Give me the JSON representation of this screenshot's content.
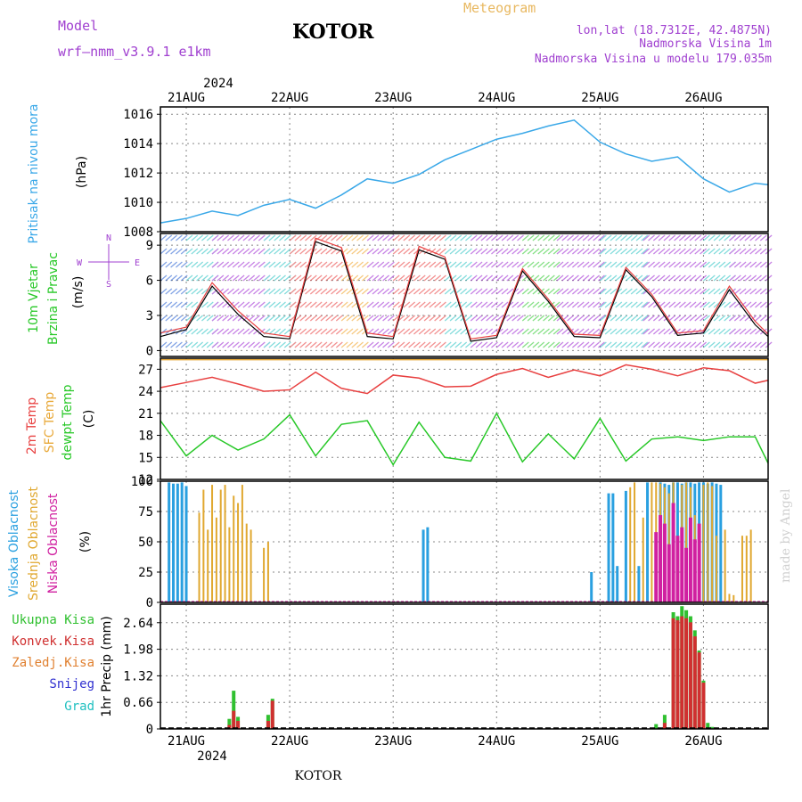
{
  "header": {
    "model_label": "Model",
    "model_name": "wrf—nmm_v3.9.1  e1km",
    "station": "KOTOR",
    "product": "Meteogram",
    "lonlat": "lon,lat (18.7312E, 42.4875N)",
    "elevation": "Nadmorska Visina 1m",
    "model_elevation": "Nadmorska Visina u modelu 179.035m",
    "credit": "made by Angel",
    "footer_station": "KOTOR"
  },
  "colors": {
    "pressure": "#3aa8e8",
    "temp2m": "#e84040",
    "sfc_temp": "#e8a838",
    "dewpoint": "#28c828",
    "cloud_high": "#2aa0e0",
    "cloud_mid": "#e0a830",
    "cloud_low": "#d020a0",
    "precip_total": "#30c030",
    "precip_conv": "#d03030",
    "precip_frozen": "#e08030",
    "snow": "#3030d0",
    "grad": "#20c0c0",
    "title": "#000000",
    "meteogram": "#e8b860",
    "model_text": "#a040d0",
    "wind_axis": "#a040d0"
  },
  "chart_data": [
    {
      "id": "pressure",
      "type": "line",
      "ylabel_name": "Pritisak na nivou mora",
      "ylabel_unit": "(hPa)",
      "ylim": [
        1008,
        1016.5
      ],
      "yticks": [
        "1008",
        "1010",
        "1012",
        "1014",
        "1016"
      ],
      "grid": true,
      "x_hours": [
        0,
        6,
        12,
        18,
        24,
        30,
        36,
        42,
        48,
        54,
        60,
        66,
        72,
        78,
        84,
        90,
        96,
        102,
        108,
        114,
        120,
        126,
        132,
        138,
        141
      ],
      "series": [
        {
          "values": [
            1008.6,
            1008.9,
            1009.4,
            1009.1,
            1009.8,
            1010.2,
            1009.6,
            1010.5,
            1011.6,
            1011.3,
            1011.9,
            1012.9,
            1013.6,
            1014.3,
            1014.7,
            1015.2,
            1015.6,
            1014.1,
            1013.3,
            1012.8,
            1013.1,
            1011.6,
            1010.7,
            1011.3,
            1011.2
          ]
        }
      ]
    },
    {
      "id": "wind",
      "type": "line",
      "ylabel_name": "10m Vjetar",
      "ylabel_name2": "Brzina i Pravac",
      "ylabel_unit": "(m/s)",
      "compass": {
        "n": "N",
        "s": "S",
        "w": "W",
        "e": "E"
      },
      "ylim": [
        -0.5,
        10
      ],
      "yticks": [
        "0",
        "3",
        "6",
        "9"
      ],
      "grid": true,
      "x_hours": [
        0,
        6,
        12,
        18,
        24,
        30,
        36,
        42,
        48,
        54,
        60,
        66,
        72,
        78,
        84,
        90,
        96,
        102,
        108,
        114,
        120,
        126,
        132,
        138,
        141
      ],
      "series": [
        {
          "name": "speed",
          "values": [
            1.2,
            1.8,
            5.5,
            3.1,
            1.2,
            1.0,
            9.3,
            8.5,
            1.2,
            1.0,
            8.6,
            7.8,
            0.8,
            1.1,
            6.8,
            4.2,
            1.2,
            1.1,
            6.9,
            4.6,
            1.3,
            1.5,
            5.2,
            2.2,
            1.2
          ]
        },
        {
          "name": "gust",
          "values": [
            1.5,
            2.0,
            5.8,
            3.4,
            1.5,
            1.2,
            9.6,
            8.8,
            1.5,
            1.2,
            8.9,
            8.0,
            1.0,
            1.3,
            7.0,
            4.4,
            1.4,
            1.3,
            7.1,
            4.8,
            1.5,
            1.7,
            5.5,
            2.5,
            1.4
          ]
        }
      ]
    },
    {
      "id": "temperature",
      "type": "line",
      "ylabel_name": "2m Temp",
      "ylabel_name2": "SFC Temp",
      "ylabel_name3": "dewpt Temp",
      "ylabel_unit": "(C)",
      "ylim": [
        12,
        28.5
      ],
      "yticks": [
        "12",
        "15",
        "18",
        "21",
        "24",
        "27"
      ],
      "grid": true,
      "x_hours": [
        0,
        6,
        12,
        18,
        24,
        30,
        36,
        42,
        48,
        54,
        60,
        66,
        72,
        78,
        84,
        90,
        96,
        102,
        108,
        114,
        120,
        126,
        132,
        138,
        141
      ],
      "series": [
        {
          "name": "2m Temp",
          "values": [
            24.5,
            25.2,
            25.9,
            25.0,
            24.0,
            24.2,
            26.6,
            24.4,
            23.7,
            26.2,
            25.8,
            24.6,
            24.7,
            26.3,
            27.1,
            25.9,
            26.9,
            26.1,
            27.6,
            27.0,
            26.1,
            27.2,
            26.8,
            25.1,
            25.5
          ]
        },
        {
          "name": "SFC Temp",
          "values": [
            28.3,
            28.3,
            28.3,
            28.3,
            28.3,
            28.3,
            28.3,
            28.3,
            28.3,
            28.3,
            28.3,
            28.3,
            28.3,
            28.3,
            28.3,
            28.3,
            28.3,
            28.3,
            28.3,
            28.3,
            28.3,
            28.3,
            28.3,
            28.3,
            28.3
          ]
        },
        {
          "name": "dewpt Temp",
          "values": [
            20.0,
            15.2,
            18.0,
            16.0,
            17.5,
            20.8,
            15.2,
            19.5,
            20.0,
            14.0,
            19.8,
            15.0,
            14.5,
            21.0,
            14.4,
            18.2,
            14.8,
            20.3,
            14.5,
            17.5,
            17.8,
            17.3,
            17.8,
            17.8,
            14.2
          ]
        }
      ]
    },
    {
      "id": "clouds",
      "type": "bar",
      "ylabel_name": "Visoka Oblacnost",
      "ylabel_name2": "Srednja Oblacnost",
      "ylabel_name3": "Niska Oblacnost",
      "ylabel_unit": "(%)",
      "ylim": [
        0,
        100
      ],
      "yticks": [
        "0",
        "25",
        "50",
        "75",
        "100"
      ],
      "grid": true,
      "series": [
        {
          "name": "Visoka Oblacnost",
          "hours": [
            2,
            3,
            4,
            5,
            6,
            61,
            62,
            100,
            104,
            105,
            106,
            108,
            111,
            113,
            116,
            117,
            118,
            119,
            120,
            121,
            122,
            123,
            124,
            125,
            126,
            127,
            128,
            129,
            130
          ],
          "values": [
            99,
            98,
            98,
            99,
            96,
            60,
            62,
            25,
            90,
            90,
            30,
            92,
            30,
            99,
            99,
            98,
            97,
            99,
            99,
            98,
            99,
            99,
            98,
            99,
            99,
            98,
            99,
            98,
            97
          ]
        },
        {
          "name": "Srednja Oblacnost",
          "hours": [
            9,
            10,
            11,
            12,
            13,
            14,
            15,
            16,
            17,
            18,
            19,
            20,
            21,
            24,
            25,
            109,
            110,
            112,
            114,
            115,
            116,
            117,
            118,
            119,
            121,
            122,
            123,
            124,
            126,
            127,
            128,
            129,
            131,
            132,
            133,
            135,
            136,
            137
          ],
          "values": [
            74,
            93,
            60,
            97,
            70,
            93,
            97,
            62,
            88,
            82,
            97,
            65,
            60,
            45,
            50,
            95,
            99,
            70,
            99,
            99,
            98,
            95,
            90,
            99,
            97,
            99,
            95,
            72,
            97,
            99,
            96,
            55,
            60,
            7,
            6,
            55,
            55,
            60
          ]
        },
        {
          "name": "Niska Oblacnost",
          "hours": [
            115,
            116,
            117,
            118,
            119,
            120,
            121,
            122,
            123,
            124,
            125
          ],
          "values": [
            58,
            72,
            65,
            48,
            82,
            55,
            62,
            45,
            70,
            52,
            65
          ]
        }
      ]
    },
    {
      "id": "precip",
      "type": "bar",
      "ylabel_unit": "1hr Precip (mm)",
      "legend": [
        "Ukupna Kisa",
        "Konvek.Kisa",
        "Zaledj.Kisa",
        "Snijeg",
        "Grad"
      ],
      "ylim": [
        0,
        3.1
      ],
      "yticks": [
        "0",
        "0.66",
        "1.32",
        "1.98",
        "2.64"
      ],
      "grid": true,
      "series": [
        {
          "name": "Ukupna Kisa",
          "hours": [
            16,
            17,
            18,
            25,
            26,
            115,
            117,
            119,
            120,
            121,
            122,
            123,
            124,
            125,
            126,
            127,
            128
          ],
          "values": [
            0.25,
            0.95,
            0.3,
            0.35,
            0.75,
            0.12,
            0.35,
            2.9,
            2.8,
            3.05,
            2.95,
            2.8,
            2.45,
            1.95,
            1.2,
            0.15,
            0.05
          ]
        },
        {
          "name": "Konvek.Kisa",
          "hours": [
            16,
            17,
            18,
            25,
            26,
            117,
            119,
            120,
            121,
            122,
            123,
            124,
            125,
            126
          ],
          "values": [
            0.1,
            0.45,
            0.2,
            0.2,
            0.7,
            0.15,
            2.75,
            2.7,
            2.8,
            2.75,
            2.65,
            2.3,
            1.9,
            1.15
          ]
        }
      ]
    }
  ],
  "time_axis": {
    "start_day_hour": 0,
    "days": [
      "21AUG",
      "22AUG",
      "23AUG",
      "24AUG",
      "25AUG",
      "26AUG"
    ],
    "day_hours": [
      6,
      30,
      54,
      78,
      102,
      126
    ],
    "year": "2024",
    "x_range_hours": [
      0,
      141
    ]
  }
}
